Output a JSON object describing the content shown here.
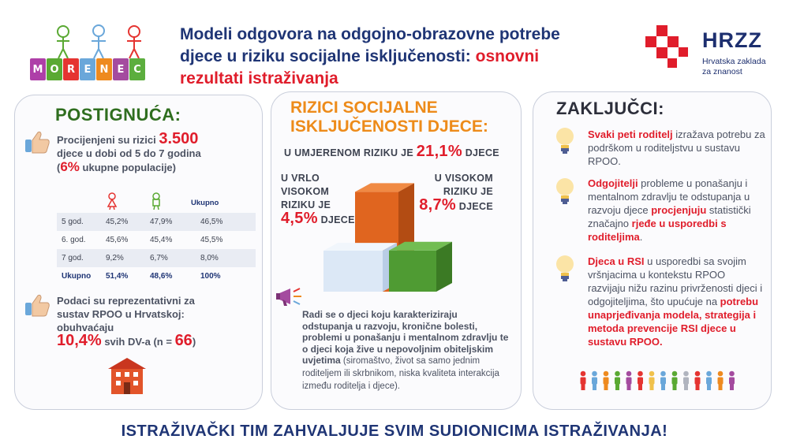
{
  "logo_left": {
    "letters": [
      "M",
      "O",
      "R",
      "E",
      "N",
      "E",
      "C"
    ],
    "colors": [
      "#ae3fa8",
      "#5aa933",
      "#e53431",
      "#6aa7da",
      "#ee8a1f",
      "#a44b9f",
      "#5cae3e"
    ]
  },
  "title": {
    "line1": "Modeli odgovora na odgojno-obrazovne potrebe",
    "line2a": "djece u riziku socijalne isključenosti: ",
    "line2b": "osnovni",
    "line3": "rezultati istraživanja"
  },
  "hrzz": {
    "word": "HRZZ",
    "sub1": "Hrvatska zaklada",
    "sub2": "za znanost"
  },
  "achievements": {
    "heading": "POSTIGNUĆA:",
    "p1": {
      "a": "Procijenjeni su rizici ",
      "b": "3.500",
      "c": "djece u dobi od 5 do 7 godina",
      "d": "(",
      "e": "6%",
      "f": " ukupne populacije)"
    },
    "table": {
      "total_header": "Ukupno",
      "rows": [
        {
          "label": "5 god.",
          "a": "45,2%",
          "b": "47,9%",
          "c": "46,5%"
        },
        {
          "label": "6. god.",
          "a": "45,6%",
          "b": "45,4%",
          "c": "45,5%"
        },
        {
          "label": "7 god.",
          "a": "9,2%",
          "b": "6,7%",
          "c": "8,0%"
        },
        {
          "label": "Ukupno",
          "a": "51,4%",
          "b": "48,6%",
          "c": "100%"
        }
      ]
    },
    "p2": {
      "a": "Podaci su reprezentativni za",
      "b": "sustav RPOO u Hrvatskoj:",
      "c": "obuhvaćaju",
      "d": "10,4%",
      "e": " svih DV-a (n = ",
      "f": "66",
      "g": ")"
    }
  },
  "risks": {
    "heading1": "RIZICI SOCIJALNE",
    "heading2": "ISKLJUČENOSTI DJECE:",
    "moderate": {
      "pre": "U UMJERENOM RIZIKU JE ",
      "val": "21,1%",
      "post": " DJECE"
    },
    "very_high": {
      "l1": "U VRLO",
      "l2": "VISOKOM",
      "l3": "RIZIKU JE",
      "val": "4,5%",
      "post": " DJECE"
    },
    "high": {
      "l1": "U VISOKOM",
      "l2": "RIZIKU JE",
      "val": "8,7%",
      "post": " DJECE"
    },
    "bar_values": [
      4.5,
      21.1,
      8.7
    ],
    "desc_bold": "Radi se o djeci koju karakteriziraju odstupanja u razvoju, kronične bolesti, problemi u ponašanju i mentalnom zdravlju te o djeci koja žive u nepovoljnim obiteljskim uvjetima",
    "desc_normal": " (siromaštvo, život sa samo jednim roditeljem ili skrbnikom, niska kvaliteta interakcija između roditelja i djece)."
  },
  "conclusions": {
    "heading": "ZAKLJUČCI:",
    "c1": {
      "a": "Svaki peti roditelj",
      "b": " izražava potrebu za podrškom u roditeljstvu u sustavu RPOO."
    },
    "c2": {
      "a": "Odgojitelji",
      "b": " probleme u ponašanju i mentalnom zdravlju te odstupanja u razvoju djece ",
      "c": "procjenjuju",
      "d": " statistički značajno ",
      "e": "rjeđe u usporedbi s roditeljima",
      "f": "."
    },
    "c3": {
      "a": "Djeca u RSI",
      "b": " u usporedbi sa svojim vršnjacima u kontekstu RPOO razvijaju nižu razinu privrženosti djeci i odgojiteljima, što upućuje na ",
      "c": "potrebu unaprjeđivanja modela, strategija i metoda prevencije RSI djece u sustavu RPOO."
    }
  },
  "footer": "ISTRAŽIVAČKI TIM ZAHVALJUJE SVIM SUDIONICIMA ISTRAŽIVANJA!",
  "colors": {
    "navy": "#1f3575",
    "red": "#e01d2b",
    "green": "#2f6e1f",
    "orange": "#ed8b1a"
  }
}
